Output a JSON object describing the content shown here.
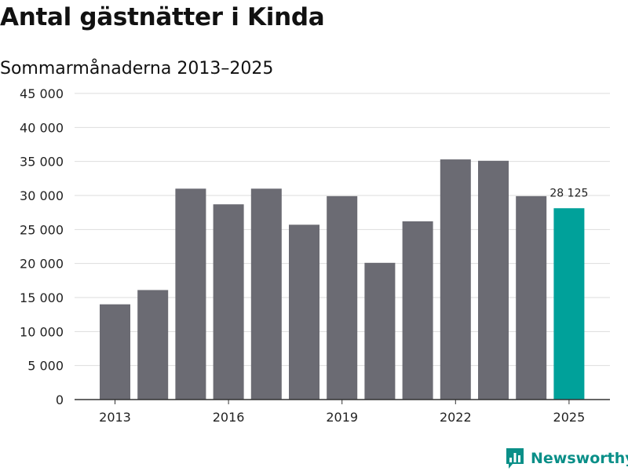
{
  "title": "Antal gästnätter i Kinda",
  "subtitle": "Sommarmånaderna 2013–2025",
  "brand": {
    "name": "Newsworthy",
    "icon": "bar-chart-icon",
    "color": "#0a8f88"
  },
  "colors": {
    "bar": "#6b6b73",
    "highlight": "#00a19a",
    "grid": "#dddddd",
    "axis": "#333333"
  },
  "chart_data": {
    "type": "bar",
    "categories": [
      "2013",
      "2014",
      "2015",
      "2016",
      "2017",
      "2018",
      "2019",
      "2020",
      "2021",
      "2022",
      "2023",
      "2024",
      "2025"
    ],
    "values": [
      14000,
      16100,
      31000,
      28700,
      31000,
      25700,
      29900,
      20100,
      26200,
      35300,
      35100,
      29900,
      28125
    ],
    "x_tick_labels": [
      "2013",
      "2016",
      "2019",
      "2022",
      "2025"
    ],
    "y_tick_labels": [
      "0",
      "5 000",
      "10 000",
      "15 000",
      "20 000",
      "25 000",
      "30 000",
      "35 000",
      "40 000",
      "45 000"
    ],
    "ylim": [
      0,
      45000
    ],
    "highlight": {
      "category": "2025",
      "label": "28 125"
    },
    "grid": true
  }
}
